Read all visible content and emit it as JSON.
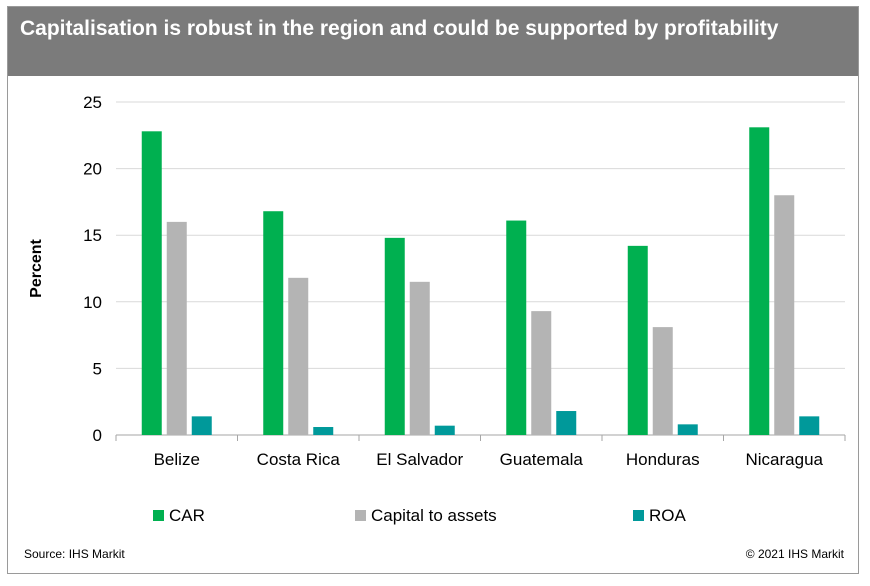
{
  "header": {
    "title": "Capitalisation is robust in the region and could be supported by profitability"
  },
  "footer": {
    "source": "Source: IHS Markit",
    "copyright": "© 2021 IHS Markit"
  },
  "chart_data": {
    "type": "bar",
    "title": "Capitalisation is robust in the region and could be supported by profitability",
    "xlabel": "",
    "ylabel": "Percent",
    "ylim": [
      0,
      25
    ],
    "yticks": [
      0,
      5,
      10,
      15,
      20,
      25
    ],
    "grid": true,
    "legend_position": "bottom",
    "categories": [
      "Belize",
      "Costa Rica",
      "El Salvador",
      "Guatemala",
      "Honduras",
      "Nicaragua"
    ],
    "series": [
      {
        "name": "CAR",
        "color": "#00b050",
        "values": [
          22.8,
          16.8,
          14.8,
          16.1,
          14.2,
          23.1
        ]
      },
      {
        "name": "Capital to assets",
        "color": "#b4b4b4",
        "values": [
          16.0,
          11.8,
          11.5,
          9.3,
          8.1,
          18.0
        ]
      },
      {
        "name": "ROA",
        "color": "#00999a",
        "values": [
          1.4,
          0.6,
          0.7,
          1.8,
          0.8,
          1.4
        ]
      }
    ]
  }
}
